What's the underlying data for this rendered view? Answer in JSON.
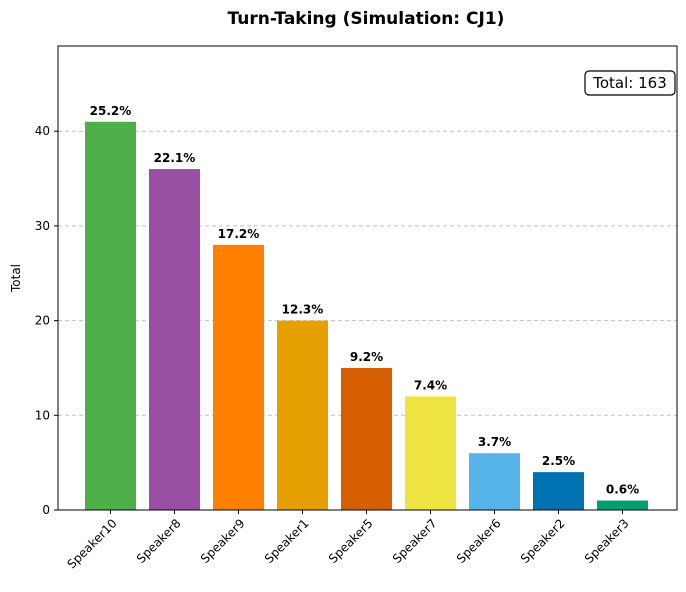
{
  "chart_data": {
    "type": "bar",
    "title": "Turn-Taking (Simulation: CJ1)",
    "xlabel": "",
    "ylabel": "Total",
    "ylim": [
      0,
      49
    ],
    "yticks": [
      0,
      10,
      20,
      30,
      40
    ],
    "grid": "y-dashed",
    "categories": [
      "Speaker10",
      "Speaker8",
      "Speaker9",
      "Speaker1",
      "Speaker5",
      "Speaker7",
      "Speaker6",
      "Speaker2",
      "Speaker3"
    ],
    "values": [
      41,
      36,
      28,
      20,
      15,
      12,
      6,
      4,
      1
    ],
    "labels": [
      "25.2%",
      "22.1%",
      "17.2%",
      "12.3%",
      "9.2%",
      "7.4%",
      "3.7%",
      "2.5%",
      "0.6%"
    ],
    "colors": [
      "#4daf4a",
      "#984ea3",
      "#ff7f00",
      "#e69f00",
      "#d55e00",
      "#f0e442",
      "#56b4e9",
      "#0072b2",
      "#009e73"
    ],
    "annotation": "Total: 163"
  }
}
